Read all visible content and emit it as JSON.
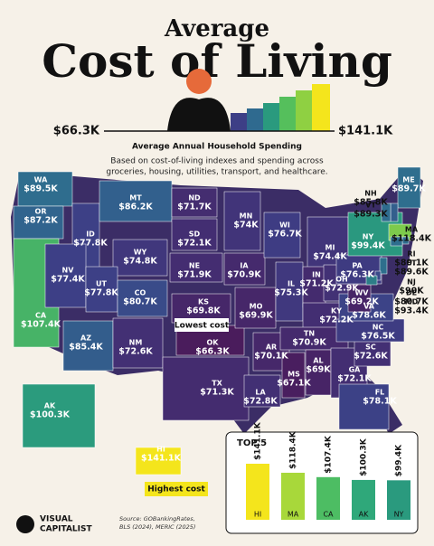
{
  "header": {
    "title_top": "Average",
    "title_main": "Cost of Living",
    "scale": {
      "min": 66.3,
      "min_label": "$66.3K",
      "max": 141.1,
      "max_label": "$141.1K"
    },
    "subtitle": "Average Annual Household Spending",
    "description": [
      "Based on cost-of-living indexes and spending across",
      "groceries, housing, utilities, transport, and healthcare."
    ]
  },
  "states": [
    {
      "abbr": "WA",
      "value": 89.5,
      "label": "$89.5K"
    },
    {
      "abbr": "OR",
      "value": 87.2,
      "label": "$87.2K"
    },
    {
      "abbr": "ID",
      "value": 77.8,
      "label": "$77.8K"
    },
    {
      "abbr": "MT",
      "value": 86.2,
      "label": "$86.2K"
    },
    {
      "abbr": "WY",
      "value": 74.8,
      "label": "$74.8K"
    },
    {
      "abbr": "CA",
      "value": 107.4,
      "label": "$107.4K"
    },
    {
      "abbr": "NV",
      "value": 77.4,
      "label": "$77.4K"
    },
    {
      "abbr": "UT",
      "value": 77.8,
      "label": "$77.8K"
    },
    {
      "abbr": "AZ",
      "value": 85.4,
      "label": "$85.4K"
    },
    {
      "abbr": "CO",
      "value": 80.7,
      "label": "$80.7K"
    },
    {
      "abbr": "NM",
      "value": 72.6,
      "label": "$72.6K"
    },
    {
      "abbr": "ND",
      "value": 71.7,
      "label": "$71.7K"
    },
    {
      "abbr": "SD",
      "value": 72.1,
      "label": "$72.1K"
    },
    {
      "abbr": "NE",
      "value": 71.9,
      "label": "$71.9K"
    },
    {
      "abbr": "KS",
      "value": 69.8,
      "label": "$69.8K"
    },
    {
      "abbr": "OK",
      "value": 66.3,
      "label": "$66.3K"
    },
    {
      "abbr": "TX",
      "value": 71.3,
      "label": "$71.3K"
    },
    {
      "abbr": "MN",
      "value": 74,
      "label": "$74K"
    },
    {
      "abbr": "IA",
      "value": 70.9,
      "label": "$70.9K"
    },
    {
      "abbr": "MO",
      "value": 69.9,
      "label": "$69.9K"
    },
    {
      "abbr": "AR",
      "value": 70.1,
      "label": "$70.1K"
    },
    {
      "abbr": "LA",
      "value": 72.8,
      "label": "$72.8K"
    },
    {
      "abbr": "WI",
      "value": 76.7,
      "label": "$76.7K"
    },
    {
      "abbr": "IL",
      "value": 75.3,
      "label": "$75.3K"
    },
    {
      "abbr": "MI",
      "value": 74.4,
      "label": "$74.4K"
    },
    {
      "abbr": "IN",
      "value": 71.2,
      "label": "$71.2K"
    },
    {
      "abbr": "OH",
      "value": 72.9,
      "label": "$72.9K"
    },
    {
      "abbr": "KY",
      "value": 72.2,
      "label": "$72.2K"
    },
    {
      "abbr": "TN",
      "value": 70.9,
      "label": "$70.9K"
    },
    {
      "abbr": "MS",
      "value": 67.1,
      "label": "$67.1K"
    },
    {
      "abbr": "AL",
      "value": 69,
      "label": "$69K"
    },
    {
      "abbr": "GA",
      "value": 72.1,
      "label": "$72.1K"
    },
    {
      "abbr": "FL",
      "value": 78.1,
      "label": "$78.1K"
    },
    {
      "abbr": "SC",
      "value": 72.6,
      "label": "$72.6K"
    },
    {
      "abbr": "NC",
      "value": 76.5,
      "label": "$76.5K"
    },
    {
      "abbr": "VA",
      "value": 78.6,
      "label": "$78.6K"
    },
    {
      "abbr": "WV",
      "value": 69.2,
      "label": "$69.2K"
    },
    {
      "abbr": "PA",
      "value": 76.3,
      "label": "$76.3K"
    },
    {
      "abbr": "NY",
      "value": 99.4,
      "label": "$99.4K"
    },
    {
      "abbr": "ME",
      "value": 89.7,
      "label": "$89.7K"
    },
    {
      "abbr": "NH",
      "value": 85.8,
      "label": "$85.8K"
    },
    {
      "abbr": "VT",
      "value": 89.3,
      "label": "$89.3K"
    },
    {
      "abbr": "MA",
      "value": 118.4,
      "label": "$118.4K"
    },
    {
      "abbr": "RI",
      "value": 89.1,
      "label": "$89.1K"
    },
    {
      "abbr": "CT",
      "value": 89.6,
      "label": "$89.6K"
    },
    {
      "abbr": "NJ",
      "value": 90,
      "label": "$90K"
    },
    {
      "abbr": "DE",
      "value": 80.7,
      "label": "$80.7K"
    },
    {
      "abbr": "MD",
      "value": 93.4,
      "label": "$93.4K"
    },
    {
      "abbr": "AK",
      "value": 100.3,
      "label": "$100.3K"
    },
    {
      "abbr": "HI",
      "value": 141.1,
      "label": "$141.1K"
    }
  ],
  "callouts": {
    "lowest": "Lowest cost",
    "highest": "Highest cost"
  },
  "top5": {
    "title": "TOP 5",
    "categories": [
      "HI",
      "MA",
      "CA",
      "AK",
      "NY"
    ],
    "values": [
      141.1,
      118.4,
      107.4,
      100.3,
      99.4
    ],
    "value_labels": [
      "$141.1K",
      "$118.4K",
      "$107.4K",
      "$100.3K",
      "$99.4K"
    ],
    "colors": [
      "#f4e51c",
      "#a8d83a",
      "#4dbd63",
      "#2fa87a",
      "#2a9a7e"
    ]
  },
  "footer": {
    "brand": [
      "VISUAL",
      "CAPITALIST"
    ],
    "source": [
      "Source: GOBankingRates,",
      "BLS (2024), MERIC (2025)"
    ]
  }
}
